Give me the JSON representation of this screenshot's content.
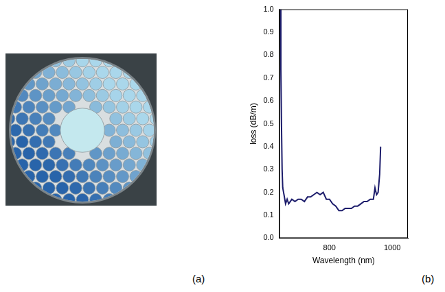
{
  "panel_labels": [
    "(a)",
    "(b)"
  ],
  "chart_data": {
    "type": "line",
    "x_label": "Wavelength (nm)",
    "y_label": "loss (dB/m)",
    "x": [
      643,
      645,
      647,
      649,
      651,
      655,
      660,
      665,
      670,
      680,
      690,
      700,
      710,
      720,
      730,
      740,
      750,
      760,
      770,
      780,
      790,
      800,
      810,
      820,
      830,
      840,
      850,
      860,
      870,
      880,
      890,
      900,
      910,
      920,
      930,
      940,
      945,
      950,
      955,
      960,
      963
    ],
    "values": [
      1.0,
      0.75,
      0.5,
      0.3,
      0.22,
      0.19,
      0.15,
      0.17,
      0.15,
      0.17,
      0.16,
      0.17,
      0.17,
      0.16,
      0.18,
      0.18,
      0.19,
      0.2,
      0.19,
      0.2,
      0.17,
      0.17,
      0.15,
      0.14,
      0.12,
      0.12,
      0.13,
      0.13,
      0.13,
      0.14,
      0.14,
      0.15,
      0.16,
      0.16,
      0.17,
      0.17,
      0.22,
      0.19,
      0.2,
      0.28,
      0.4
    ],
    "color": "#1c1c6b",
    "xlim": [
      640,
      1050
    ],
    "xticks": [
      800,
      1000
    ],
    "ylim": [
      0,
      1
    ],
    "yticks": [
      {
        "value": 0,
        "label": "0.0"
      },
      0.1,
      0.2,
      0.3,
      0.4,
      0.5,
      0.6,
      0.7,
      0.8,
      0.9,
      {
        "value": 1,
        "label": "1.0"
      }
    ],
    "grid": false
  }
}
